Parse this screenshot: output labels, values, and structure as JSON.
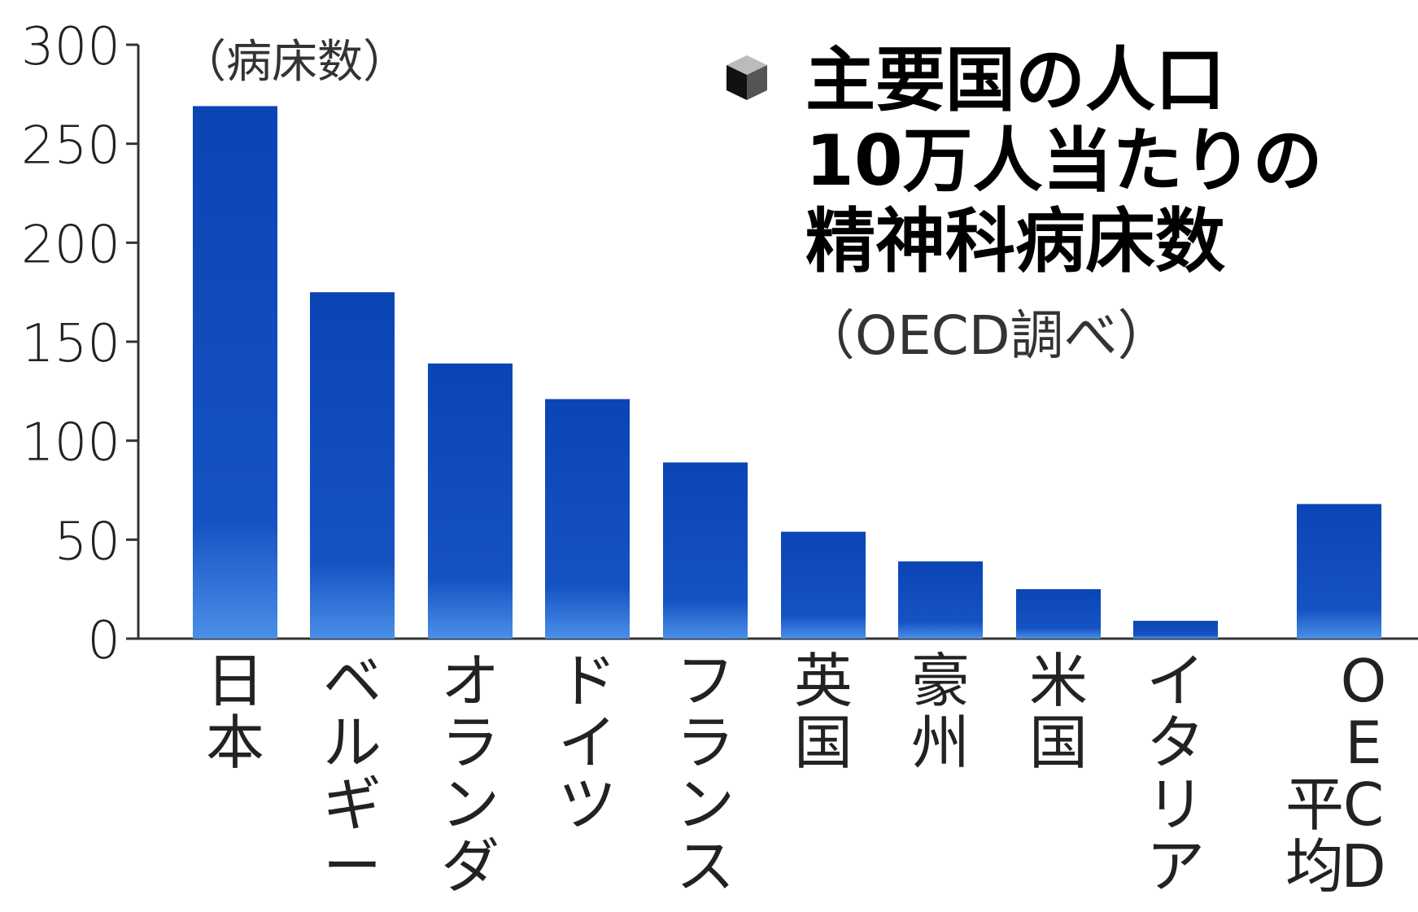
{
  "chart_data": {
    "type": "bar",
    "title": "主要国の人口10万人当たりの精神科病床数",
    "title_lines": [
      "主要国の人口",
      "10万人当たりの",
      "精神科病床数"
    ],
    "source": "（OECD調べ）",
    "unit_label": "（病床数）",
    "ylim": [
      0,
      300
    ],
    "yticks": [
      "0",
      "50",
      "100",
      "150",
      "200",
      "250",
      "300"
    ],
    "categories": [
      "日本",
      "ベルギー",
      "オランダ",
      "ドイツ",
      "フランス",
      "英国",
      "豪州",
      "米国",
      "イタリア",
      "OECD平均"
    ],
    "category_columns": [
      [
        [
          "日本"
        ]
      ],
      [
        [
          "ベルギー"
        ]
      ],
      [
        [
          "オランダ"
        ]
      ],
      [
        [
          "ドイツ"
        ]
      ],
      [
        [
          "フランス"
        ]
      ],
      [
        [
          "英国"
        ]
      ],
      [
        [
          "豪州"
        ]
      ],
      [
        [
          "米国"
        ]
      ],
      [
        [
          "イタリア"
        ]
      ],
      [
        [
          "平均"
        ],
        [
          "OECD"
        ]
      ]
    ],
    "values": [
      269,
      175,
      139,
      121,
      89,
      54,
      39,
      25,
      9,
      68
    ],
    "grid": false,
    "legend": "none",
    "bar_color_top": "#0b45b5",
    "bar_color_bottom": "#4a8fe8",
    "icon": "cube-icon"
  }
}
